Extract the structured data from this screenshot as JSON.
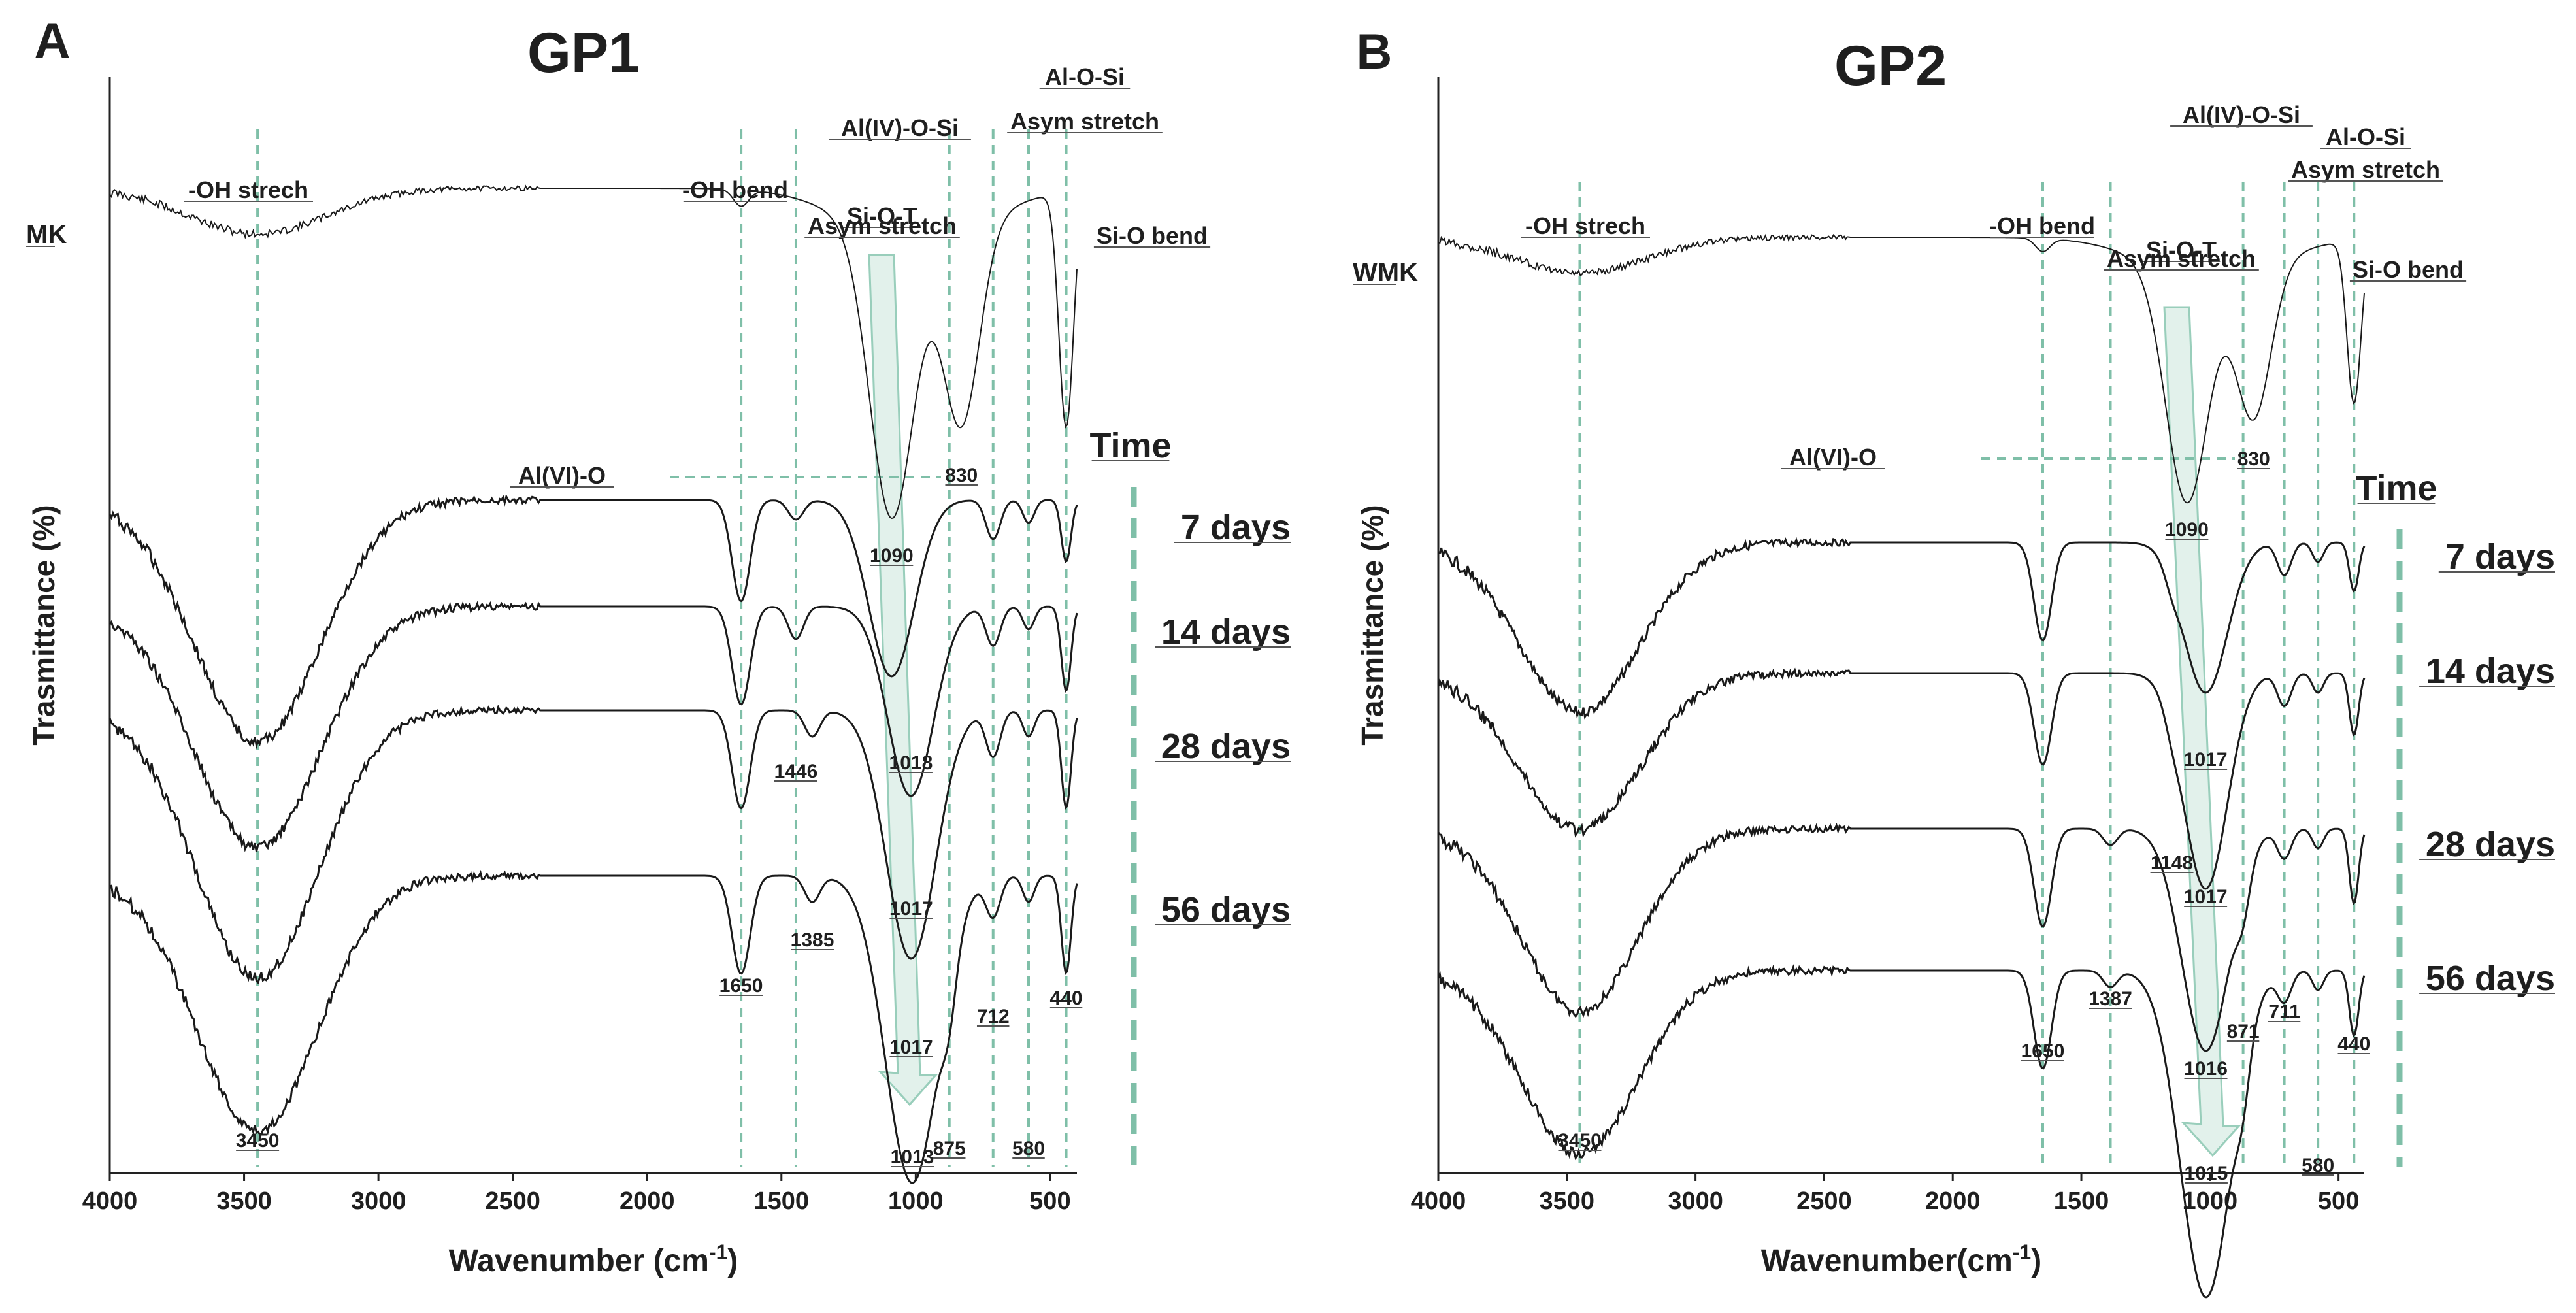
{
  "panels": [
    {
      "letter": "A",
      "title": "GP1",
      "xlabel": "Wavenumber (cm",
      "xlabel_sup": "-1",
      "xlabel_end": ")",
      "ylabel": "Trasmittance (%)",
      "x_ticks": [
        "4000",
        "3500",
        "3000",
        "2500",
        "2000",
        "1500",
        "1000",
        "500"
      ],
      "ref_label": "MK",
      "time_label": "Time",
      "series_labels": [
        "7 days",
        "14 days",
        "28 days",
        "56 days"
      ],
      "band_labels": [
        "-OH strech",
        "-OH bend",
        "Si-O-T",
        "Asym stretch",
        "Al(IV)-O-Si",
        "Al-O-Si",
        "Asym stretch",
        "Si-O bend",
        "Al(VI)-O"
      ],
      "peak_values": [
        "3450",
        "1650",
        "1446",
        "1385",
        "1090",
        "1018",
        "1017",
        "1017",
        "1013",
        "875",
        "830",
        "712",
        "580",
        "440"
      ]
    },
    {
      "letter": "B",
      "title": "GP2",
      "xlabel": "Wavenumber(cm",
      "xlabel_sup": "-1",
      "xlabel_end": ")",
      "ylabel": "Trasmittance (%)",
      "x_ticks": [
        "4000",
        "3500",
        "3000",
        "2500",
        "2000",
        "1500",
        "1000",
        "500"
      ],
      "ref_label": "WMK",
      "time_label": "Time",
      "series_labels": [
        "7 days",
        "14 days",
        "28 days",
        "56 days"
      ],
      "band_labels": [
        "-OH strech",
        "-OH bend",
        "Si-O-T",
        "Asym stretch",
        "Al(IV)-O-Si",
        "Al-O-Si",
        "Asym stretch",
        "Si-O bend",
        "Al(VI)-O"
      ],
      "peak_values": [
        "3450",
        "1650",
        "1148",
        "1387",
        "1090",
        "1017",
        "1017",
        "1016",
        "1015",
        "871",
        "830",
        "711",
        "580",
        "440"
      ]
    }
  ],
  "colors": {
    "curve": "#1a1a1a",
    "guide": "#7fbfa8",
    "arrow_fill": "#dff0e9",
    "arrow_stroke": "#8ec9b4"
  },
  "chart_data": [
    {
      "type": "line",
      "title": "GP1",
      "xlabel": "Wavenumber (cm-1)",
      "ylabel": "Trasmittance (%)",
      "xlim": [
        4000,
        400
      ],
      "x_reversed": true,
      "series": [
        {
          "name": "MK",
          "peaks": [
            3450,
            1650,
            1090,
            830,
            440
          ]
        },
        {
          "name": "7 days",
          "peaks": [
            3450,
            1650,
            1446,
            1090,
            712,
            580,
            440
          ]
        },
        {
          "name": "14 days",
          "peaks": [
            3450,
            1650,
            1446,
            1018,
            712,
            580,
            440
          ]
        },
        {
          "name": "28 days",
          "peaks": [
            3450,
            1650,
            1385,
            1017,
            712,
            580,
            440
          ]
        },
        {
          "name": "56 days",
          "peaks": [
            3450,
            1650,
            1385,
            1013,
            875,
            712,
            580,
            440
          ]
        }
      ],
      "annotations": [
        "-OH strech",
        "-OH bend",
        "Si-O-T Asym stretch",
        "Al(IV)-O-Si",
        "Al-O-Si Asym stretch",
        "Si-O bend",
        "Al(VI)-O"
      ]
    },
    {
      "type": "line",
      "title": "GP2",
      "xlabel": "Wavenumber(cm-1)",
      "ylabel": "Trasmittance (%)",
      "xlim": [
        4000,
        400
      ],
      "x_reversed": true,
      "series": [
        {
          "name": "WMK",
          "peaks": [
            3450,
            1650,
            1090,
            830,
            440
          ]
        },
        {
          "name": "7 days",
          "peaks": [
            3450,
            1650,
            1148,
            1017,
            711,
            580,
            440
          ]
        },
        {
          "name": "14 days",
          "peaks": [
            3450,
            1650,
            1148,
            1017,
            711,
            580,
            440
          ]
        },
        {
          "name": "28 days",
          "peaks": [
            3450,
            1650,
            1387,
            1016,
            871,
            711,
            580,
            440
          ]
        },
        {
          "name": "56 days",
          "peaks": [
            3450,
            1650,
            1387,
            1015,
            871,
            711,
            580,
            440
          ]
        }
      ],
      "annotations": [
        "-OH strech",
        "-OH bend",
        "Si-O-T Asym stretch",
        "Al(IV)-O-Si",
        "Al-O-Si Asym stretch",
        "Si-O bend",
        "Al(VI)-O"
      ]
    }
  ]
}
